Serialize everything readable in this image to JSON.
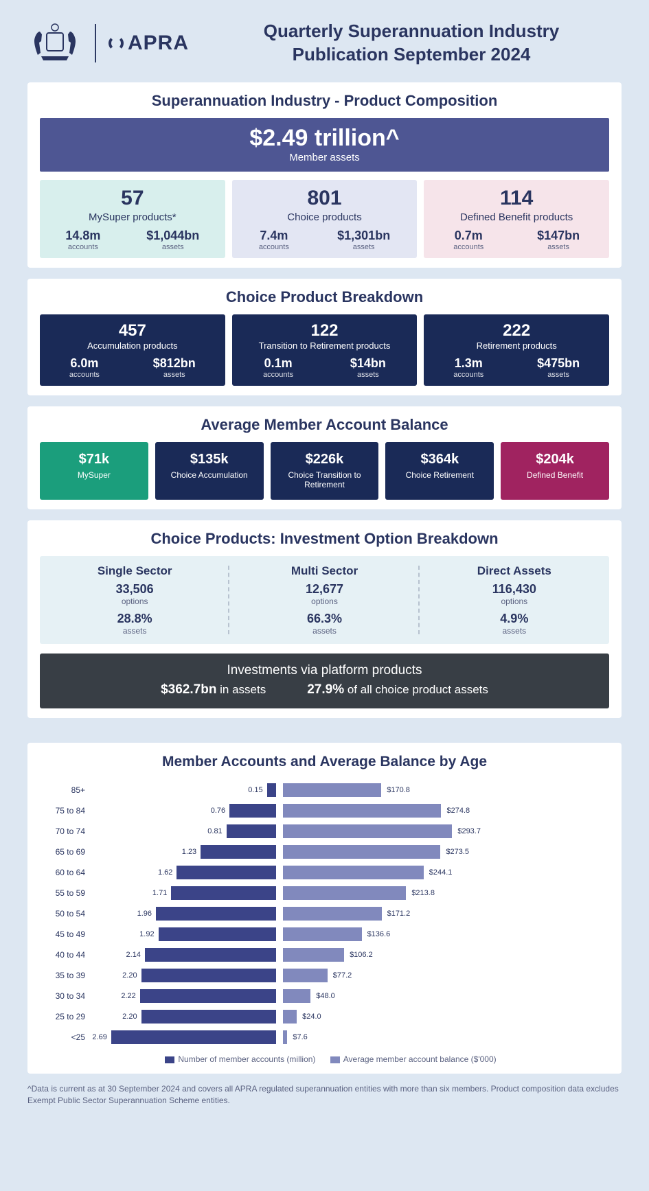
{
  "header": {
    "logo_text": "APRA",
    "title_l1": "Quarterly Superannuation Industry",
    "title_l2": "Publication September 2024"
  },
  "composition": {
    "title": "Superannuation Industry - Product Composition",
    "banner_big": "$2.49 trillion^",
    "banner_sub": "Member assets",
    "products": [
      {
        "count": "57",
        "name": "MySuper products*",
        "accounts": "14.8m",
        "assets": "$1,044bn",
        "bg": "#d8efed"
      },
      {
        "count": "801",
        "name": "Choice products",
        "accounts": "7.4m",
        "assets": "$1,301bn",
        "bg": "#e3e6f3"
      },
      {
        "count": "114",
        "name": "Defined Benefit products",
        "accounts": "0.7m",
        "assets": "$147bn",
        "bg": "#f6e4ea"
      }
    ],
    "acc_lbl": "accounts",
    "ast_lbl": "assets"
  },
  "choice": {
    "title": "Choice Product Breakdown",
    "items": [
      {
        "count": "457",
        "name": "Accumulation products",
        "accounts": "6.0m",
        "assets": "$812bn"
      },
      {
        "count": "122",
        "name": "Transition to Retirement products",
        "accounts": "0.1m",
        "assets": "$14bn"
      },
      {
        "count": "222",
        "name": "Retirement products",
        "accounts": "1.3m",
        "assets": "$475bn"
      }
    ]
  },
  "avg": {
    "title": "Average Member Account Balance",
    "items": [
      {
        "val": "$71k",
        "lbl": "MySuper",
        "bg": "#1b9e7c"
      },
      {
        "val": "$135k",
        "lbl": "Choice Accumulation",
        "bg": "#1a2a57"
      },
      {
        "val": "$226k",
        "lbl": "Choice Transition to Retirement",
        "bg": "#1a2a57"
      },
      {
        "val": "$364k",
        "lbl": "Choice Retirement",
        "bg": "#1a2a57"
      },
      {
        "val": "$204k",
        "lbl": "Defined Benefit",
        "bg": "#a02360"
      }
    ]
  },
  "inv": {
    "title": "Choice Products: Investment Option Breakdown",
    "items": [
      {
        "top": "Single Sector",
        "opt": "33,506",
        "pct": "28.8%"
      },
      {
        "top": "Multi Sector",
        "opt": "12,677",
        "pct": "66.3%"
      },
      {
        "top": "Direct Assets",
        "opt": "116,430",
        "pct": "4.9%"
      }
    ],
    "opt_lbl": "options",
    "ast_lbl": "assets",
    "platform_title": "Investments via platform products",
    "platform_assets": "$362.7bn",
    "platform_assets_sfx": " in assets",
    "platform_pct": "27.9%",
    "platform_pct_sfx": " of all choice product assets"
  },
  "chart": {
    "title": "Member Accounts and Average Balance by Age",
    "left_max": 2.8,
    "right_max": 310,
    "rows": [
      {
        "age": "85+",
        "acc": 0.15,
        "bal": 170.8
      },
      {
        "age": "75 to 84",
        "acc": 0.76,
        "bal": 274.8
      },
      {
        "age": "70 to 74",
        "acc": 0.81,
        "bal": 293.7
      },
      {
        "age": "65 to 69",
        "acc": 1.23,
        "bal": 273.5
      },
      {
        "age": "60 to 64",
        "acc": 1.62,
        "bal": 244.1
      },
      {
        "age": "55 to 59",
        "acc": 1.71,
        "bal": 213.8
      },
      {
        "age": "50 to 54",
        "acc": 1.96,
        "bal": 171.2
      },
      {
        "age": "45 to 49",
        "acc": 1.92,
        "bal": 136.6
      },
      {
        "age": "40 to 44",
        "acc": 2.14,
        "bal": 106.2
      },
      {
        "age": "35 to 39",
        "acc": 2.2,
        "bal": 77.2
      },
      {
        "age": "30 to 34",
        "acc": 2.22,
        "bal": 48.0
      },
      {
        "age": "25 to 29",
        "acc": 2.2,
        "bal": 24.0
      },
      {
        "age": "<25",
        "acc": 2.69,
        "bal": 7.6
      }
    ],
    "legend_l": "Number of member accounts (million)",
    "legend_r": "Average member account balance ($'000)",
    "color_l": "#3b4488",
    "color_r": "#8189bd"
  },
  "footnote": "^Data is current as at 30 September 2024 and covers all APRA regulated superannuation entities with more than six members.  Product composition data excludes Exempt Public Sector Superannuation Scheme entities."
}
